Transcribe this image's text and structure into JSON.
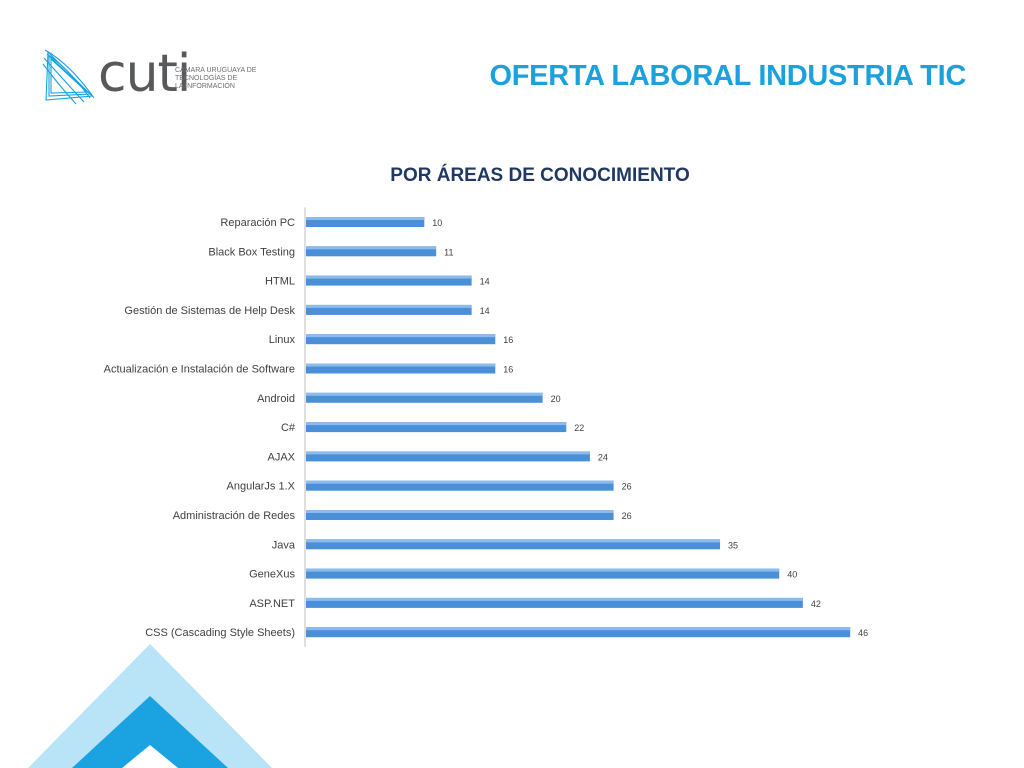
{
  "header": {
    "logo_word": "cuti",
    "logo_tagline": [
      "CÁMARA URUGUAYA DE",
      "TECNOLOGÍAS DE",
      "LA INFORMACIÓN"
    ],
    "page_title": "OFERTA LABORAL INDUSTRIA TIC"
  },
  "colors": {
    "title": "#1da1dc",
    "chart_title": "#1f3864",
    "bar": "#4a90d9",
    "corner_light": "#b9e3f7",
    "corner_dark": "#1aa3e0"
  },
  "chart_data": {
    "type": "bar",
    "orientation": "horizontal",
    "title": "POR ÁREAS DE CONOCIMIENTO",
    "xlabel": "",
    "ylabel": "",
    "categories": [
      "Reparación PC",
      "Black Box Testing",
      "HTML",
      "Gestión de Sistemas de Help Desk",
      "Linux",
      "Actualización e Instalación de Software",
      "Android",
      "C#",
      "AJAX",
      "AngularJs 1.X",
      "Administración de Redes",
      "Java",
      "GeneXus",
      "ASP.NET",
      "CSS (Cascading Style Sheets)"
    ],
    "values": [
      10,
      11,
      14,
      14,
      16,
      16,
      20,
      22,
      24,
      26,
      26,
      35,
      40,
      42,
      46
    ],
    "data_labels": true,
    "grid": false,
    "legend": "none"
  }
}
